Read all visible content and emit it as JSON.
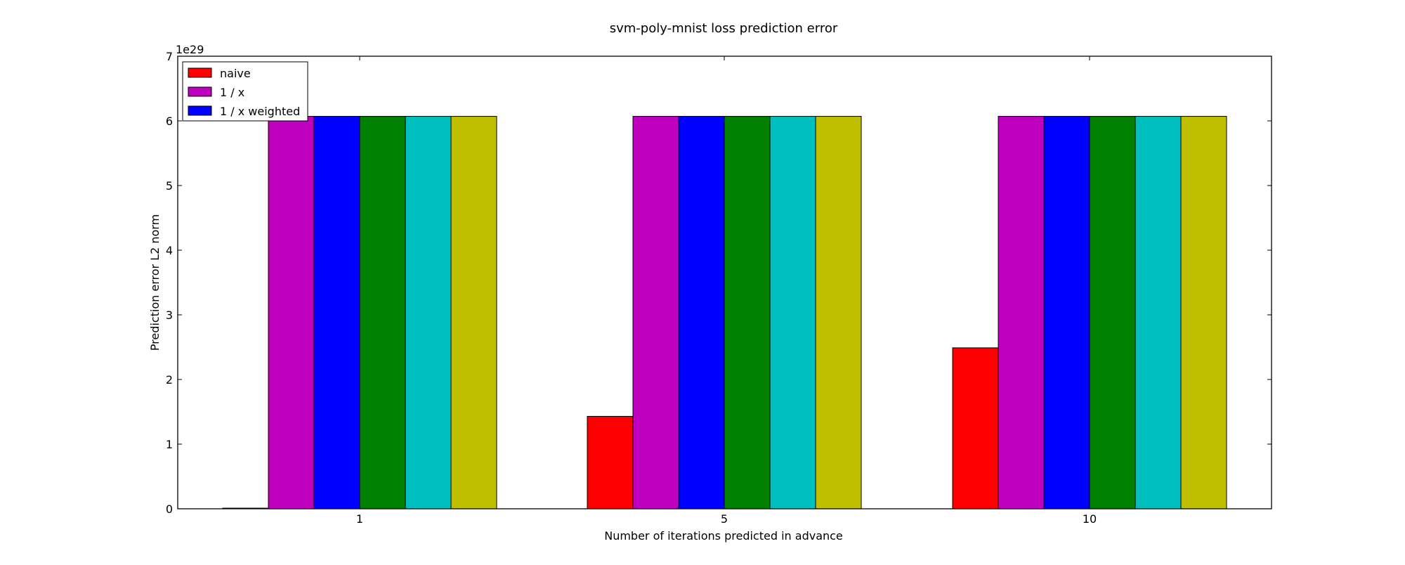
{
  "chart_data": {
    "type": "bar",
    "title": "svm-poly-mnist loss prediction error",
    "xlabel": "Number of iterations predicted in advance",
    "ylabel": "Prediction error L2 norm",
    "y_multiplier_label": "1e29",
    "categories": [
      "1",
      "5",
      "10"
    ],
    "y_ticks": [
      "0",
      "1",
      "2",
      "3",
      "4",
      "5",
      "6",
      "7"
    ],
    "ylim": [
      0,
      7
    ],
    "y_unit_scale": 1e+29,
    "grid": false,
    "legend_position": "top-left",
    "series": [
      {
        "name": "naive",
        "color": "#ff0000",
        "values": [
          0.01,
          1.43,
          2.49
        ],
        "in_legend": true
      },
      {
        "name": "1 / x",
        "color": "#bf00bf",
        "values": [
          6.07,
          6.07,
          6.07
        ],
        "in_legend": true
      },
      {
        "name": "1 / x weighted",
        "color": "#0000ff",
        "values": [
          6.07,
          6.07,
          6.07
        ],
        "in_legend": true
      },
      {
        "color": "#008000",
        "values": [
          6.07,
          6.07,
          6.07
        ],
        "in_legend": false
      },
      {
        "color": "#00bfbf",
        "values": [
          6.07,
          6.07,
          6.07
        ],
        "in_legend": false
      },
      {
        "color": "#bfbf00",
        "values": [
          6.07,
          6.07,
          6.07
        ],
        "in_legend": false
      }
    ]
  }
}
